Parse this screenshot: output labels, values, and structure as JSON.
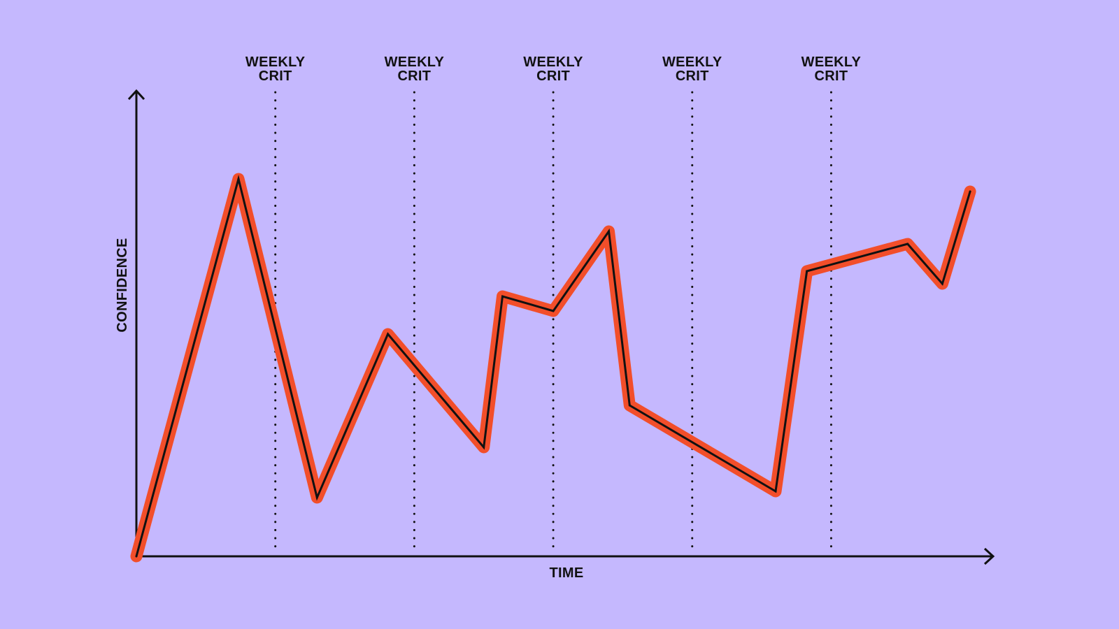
{
  "chart_data": {
    "type": "line",
    "title": "",
    "xlabel": "TIME",
    "ylabel": "CONFIDENCE",
    "xlim": [
      0,
      12.2
    ],
    "ylim": [
      0,
      10
    ],
    "grid": false,
    "series": [
      {
        "values": [
          {
            "x": 0.0,
            "y": 0.0
          },
          {
            "x": 1.47,
            "y": 9.0
          },
          {
            "x": 2.6,
            "y": 1.4
          },
          {
            "x": 3.62,
            "y": 5.3
          },
          {
            "x": 5.0,
            "y": 2.6
          },
          {
            "x": 5.27,
            "y": 6.2
          },
          {
            "x": 6.0,
            "y": 5.85
          },
          {
            "x": 6.8,
            "y": 7.75
          },
          {
            "x": 7.1,
            "y": 3.6
          },
          {
            "x": 9.2,
            "y": 1.55
          },
          {
            "x": 9.65,
            "y": 6.8
          },
          {
            "x": 11.1,
            "y": 7.45
          },
          {
            "x": 11.6,
            "y": 6.5
          },
          {
            "x": 12.0,
            "y": 8.7
          }
        ]
      }
    ],
    "markers": [
      {
        "x": 2,
        "label_line1": "WEEKLY",
        "label_line2": "CRIT"
      },
      {
        "x": 4,
        "label_line1": "WEEKLY",
        "label_line2": "CRIT"
      },
      {
        "x": 6,
        "label_line1": "WEEKLY",
        "label_line2": "CRIT"
      },
      {
        "x": 8,
        "label_line1": "WEEKLY",
        "label_line2": "CRIT"
      },
      {
        "x": 10,
        "label_line1": "WEEKLY",
        "label_line2": "CRIT"
      }
    ],
    "colors": {
      "background": "#c5b8fe",
      "line_outer": "#f24e2a",
      "line_inner": "#111111",
      "axis": "#111111"
    }
  }
}
